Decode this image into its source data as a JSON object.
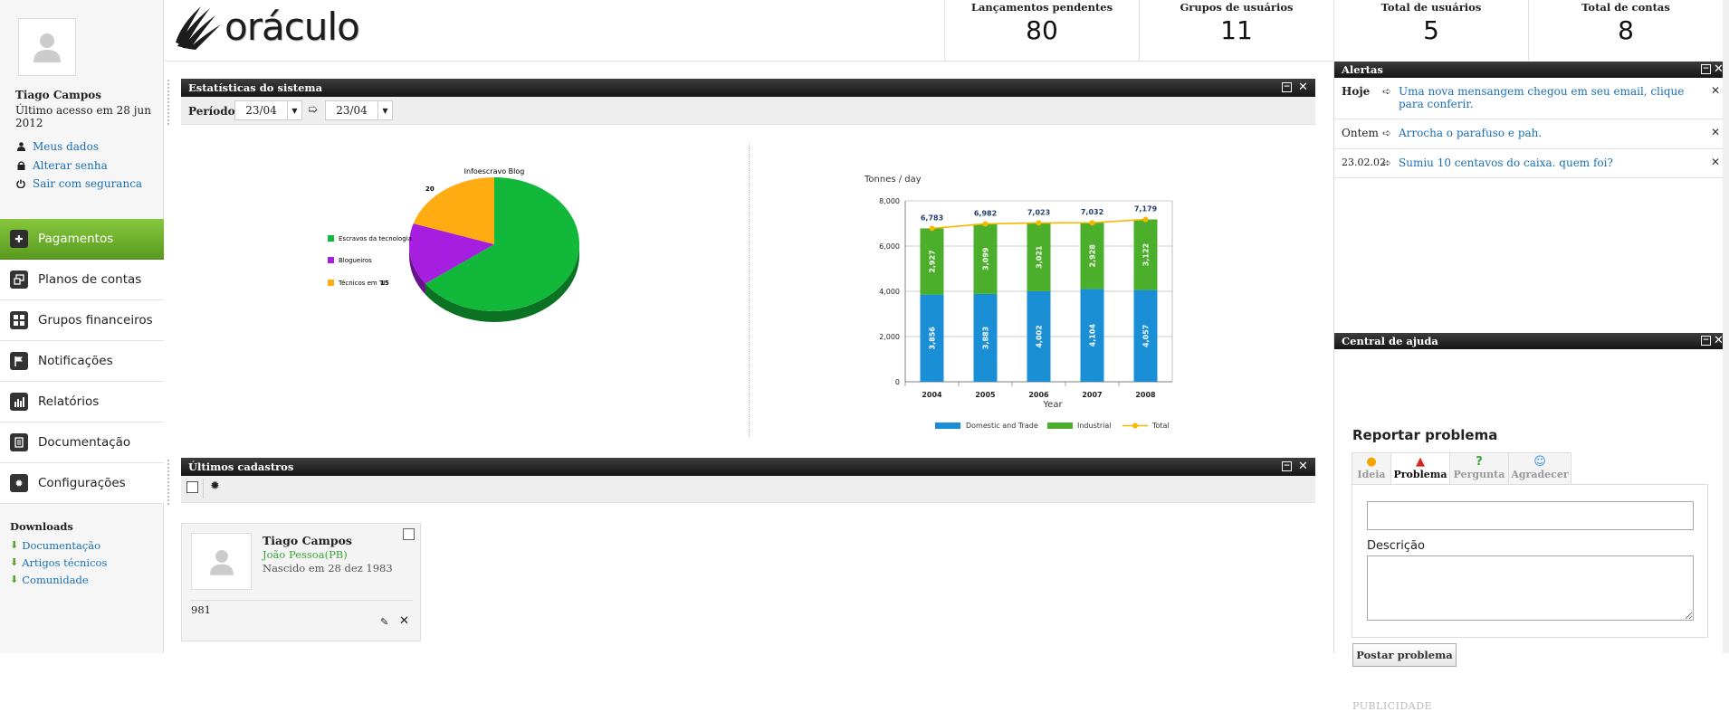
{
  "brand": {
    "name": "oráculo"
  },
  "user": {
    "name": "Tiago Campos",
    "last_access": "Último acesso em 28 jun 2012"
  },
  "user_links": [
    "Meus dados",
    "Alterar senha",
    "Sair com seguranca"
  ],
  "nav": {
    "items": [
      {
        "label": "Pagamentos",
        "icon": "plus-icon"
      },
      {
        "label": "Planos de contas",
        "icon": "windows-icon"
      },
      {
        "label": "Grupos financeiros",
        "icon": "grid-icon"
      },
      {
        "label": "Notificações",
        "icon": "flag-icon"
      },
      {
        "label": "Relatórios",
        "icon": "bar-chart-icon"
      },
      {
        "label": "Documentação",
        "icon": "document-icon"
      },
      {
        "label": "Configurações",
        "icon": "gear-icon"
      }
    ],
    "active": "Pagamentos"
  },
  "downloads": {
    "title": "Downloads",
    "items": [
      "Documentação",
      "Artigos técnicos",
      "Comunidade"
    ]
  },
  "stats": [
    {
      "label": "Lançamentos pendentes",
      "value": "80"
    },
    {
      "label": "Grupos de usuários",
      "value": "11"
    },
    {
      "label": "Total de usuários",
      "value": "5"
    },
    {
      "label": "Total de contas",
      "value": "8"
    }
  ],
  "panels": {
    "stats_title": "Estatísticas do sistema",
    "latest_title": "Últimos cadastros",
    "alerts_title": "Alertas",
    "help_title": "Central de ajuda"
  },
  "period": {
    "label": "Período",
    "from": "23/04",
    "to": "23/04"
  },
  "chart_data": [
    {
      "type": "pie",
      "title": "Infoescravo Blog",
      "slices": [
        {
          "label": "Escravos da tecnologia",
          "value": 65,
          "color": "#12b83a"
        },
        {
          "label": "Blogueiros",
          "value": 15,
          "color": "#a61ee0"
        },
        {
          "label": "Técnicos em TI",
          "value": 20,
          "color": "#ffab12"
        }
      ],
      "data_labels": [
        "20",
        "15"
      ]
    },
    {
      "type": "bar",
      "stacked": true,
      "ylabel": "Tonnes / day",
      "xlabel": "Year",
      "ylim": [
        0,
        8000
      ],
      "yticks": [
        "0",
        "2,000",
        "4,000",
        "6,000",
        "8,000"
      ],
      "categories": [
        "2004",
        "2005",
        "2006",
        "2007",
        "2008"
      ],
      "series": [
        {
          "name": "Domestic and Trade",
          "values": [
            3856,
            3883,
            4002,
            4104,
            4057
          ],
          "labels": [
            "3,856",
            "3,883",
            "4,002",
            "4,104",
            "4,057"
          ],
          "color": "#1b8fd6"
        },
        {
          "name": "Industrial",
          "values": [
            2927,
            3099,
            3021,
            2928,
            3122
          ],
          "labels": [
            "2,927",
            "3,099",
            "3,021",
            "2,928",
            "3,122"
          ],
          "color": "#4caf2b"
        },
        {
          "name": "Total",
          "type": "line",
          "values": [
            6783,
            6982,
            7023,
            7032,
            7179
          ],
          "labels": [
            "6,783",
            "6,982",
            "7,023",
            "7,032",
            "7,179"
          ],
          "color": "#f5b800"
        }
      ]
    }
  ],
  "latest": {
    "card": {
      "name": "Tiago Campos",
      "city": "João Pessoa(PB)",
      "born": "Nascido em 28 dez 1983",
      "number": "981"
    }
  },
  "alerts": [
    {
      "date": "Hoje",
      "text": "Uma nova mensangem chegou em seu email, clique para conferir."
    },
    {
      "date": "Ontem",
      "text": "Arrocha o parafuso e pah."
    },
    {
      "date": "23.02.02",
      "text": "Sumiu 10 centavos do caixa. quem foi?"
    }
  ],
  "help": {
    "heading": "Reportar problema",
    "tabs": [
      {
        "label": "Ideia",
        "icon": "lightbulb-icon"
      },
      {
        "label": "Problema",
        "icon": "warning-icon"
      },
      {
        "label": "Pergunta",
        "icon": "question-icon"
      },
      {
        "label": "Agradecer",
        "icon": "smile-icon"
      }
    ],
    "active_tab": "Problema",
    "description_label": "Descrição",
    "submit": "Postar problema",
    "ad_label": "PUBLICIDADE"
  }
}
